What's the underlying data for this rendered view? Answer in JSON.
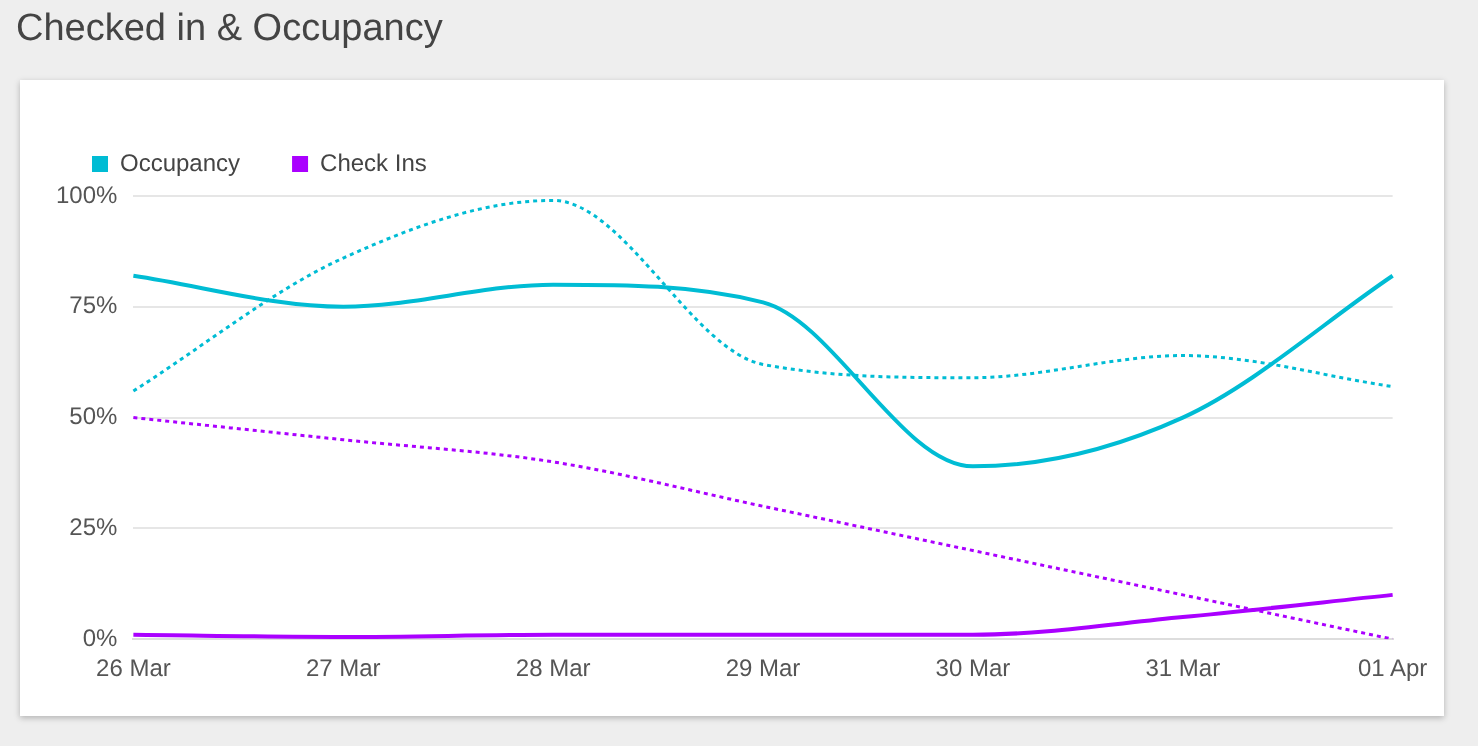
{
  "chart_data": {
    "type": "line",
    "title": "Checked in & Occupancy",
    "categories": [
      "26 Mar",
      "27 Mar",
      "28 Mar",
      "29 Mar",
      "30 Mar",
      "31 Mar",
      "01 Apr"
    ],
    "series": [
      {
        "name": "Occupancy",
        "color": "#00bcd4",
        "values": [
          82,
          75,
          80,
          76,
          39,
          50,
          82
        ],
        "line_style": "solid"
      },
      {
        "name": "Check Ins",
        "color": "#aa00ff",
        "values": [
          1,
          0.5,
          1,
          1,
          1,
          5,
          10
        ],
        "line_style": "solid"
      },
      {
        "color": "#00bcd4",
        "values": [
          56,
          86,
          99,
          62,
          59,
          64,
          57
        ],
        "line_style": "dotted"
      },
      {
        "color": "#aa00ff",
        "values": [
          50,
          45,
          40,
          30,
          20,
          10,
          0
        ],
        "line_style": "dotted"
      }
    ],
    "ylim": [
      0,
      100
    ],
    "yticks": [
      {
        "value": 0,
        "label": "0%"
      },
      {
        "value": 25,
        "label": "25%"
      },
      {
        "value": 50,
        "label": "50%"
      },
      {
        "value": 75,
        "label": "75%"
      },
      {
        "value": 100,
        "label": "100%"
      }
    ],
    "grid": "y",
    "legend": "top left",
    "marker": "none"
  }
}
